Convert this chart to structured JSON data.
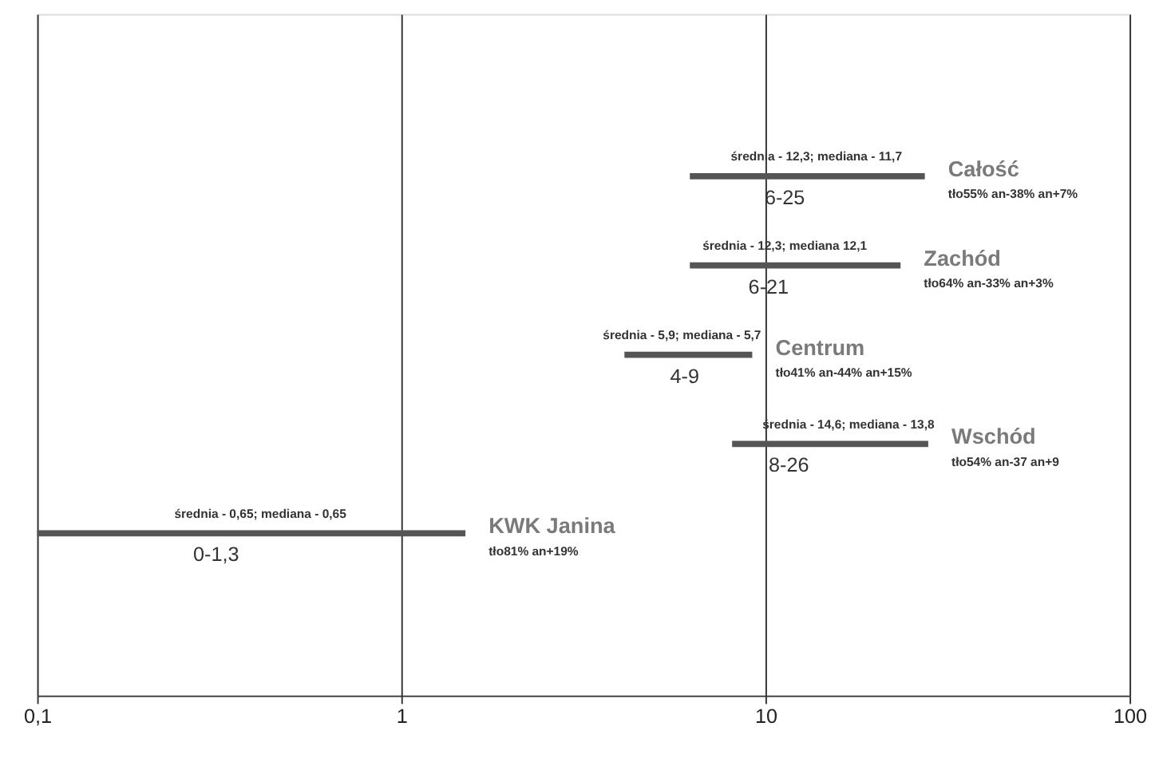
{
  "chart_data": {
    "type": "bar",
    "orientation": "horizontal",
    "log": "x",
    "categories": [
      "Całość",
      "Zachód",
      "Centrum",
      "Wschód",
      "KWK Janina"
    ],
    "base": [
      6.2,
      6.2,
      4.1,
      8.1,
      0.1
    ],
    "values": [
      21.2,
      17.3,
      5.1,
      19.9,
      1.4
    ],
    "color": "#555555",
    "xlim": [
      0.1,
      100
    ],
    "xticks": [
      {
        "value": 0.1,
        "label": "0,1"
      },
      {
        "value": 1,
        "label": "1"
      },
      {
        "value": 10,
        "label": "10"
      },
      {
        "value": 100,
        "label": "100"
      }
    ],
    "grid": "x",
    "tick_labels": "x",
    "legend": false,
    "annotations": [
      {
        "text": "średnia - 12,3; mediana - 11,7",
        "x": 13.8,
        "y": "Całość"
      },
      {
        "text": "6-25",
        "x": 11.3,
        "y": "Całość"
      },
      {
        "text": "tło55% an-38% an+7%",
        "x": 27.4,
        "y": "Całość"
      },
      {
        "text": "średnia - 12,3; mediana 12,1",
        "x": 11.3,
        "y": "Zachód"
      },
      {
        "text": "6-21",
        "x": 10.2,
        "y": "Zachód"
      },
      {
        "text": "tło64% an-33% an+3%",
        "x": 23.5,
        "y": "Zachód"
      },
      {
        "text": "średnia - 5,9; mediana - 5,7",
        "x": 5.9,
        "y": "Centrum"
      },
      {
        "text": "4-9",
        "x": 6.0,
        "y": "Centrum"
      },
      {
        "text": "tło41% an-44% an+15%",
        "x": 9.2,
        "y": "Centrum"
      },
      {
        "text": "średnia - 14,6; mediana - 13,8",
        "x": 16.9,
        "y": "Wschód"
      },
      {
        "text": "8-26",
        "x": 11.6,
        "y": "Wschód"
      },
      {
        "text": "tło54% an-37 an+9",
        "x": 28,
        "y": "Wschód"
      },
      {
        "text": "średnia - 0,65; mediana - 0,65",
        "x": 0.41,
        "y": "KWK Janina"
      },
      {
        "text": "0-1,3",
        "x": 0.31,
        "y": "KWK Janina"
      },
      {
        "text": "tło81% an+19%",
        "x": 1.5,
        "y": "KWK Janina"
      }
    ]
  }
}
